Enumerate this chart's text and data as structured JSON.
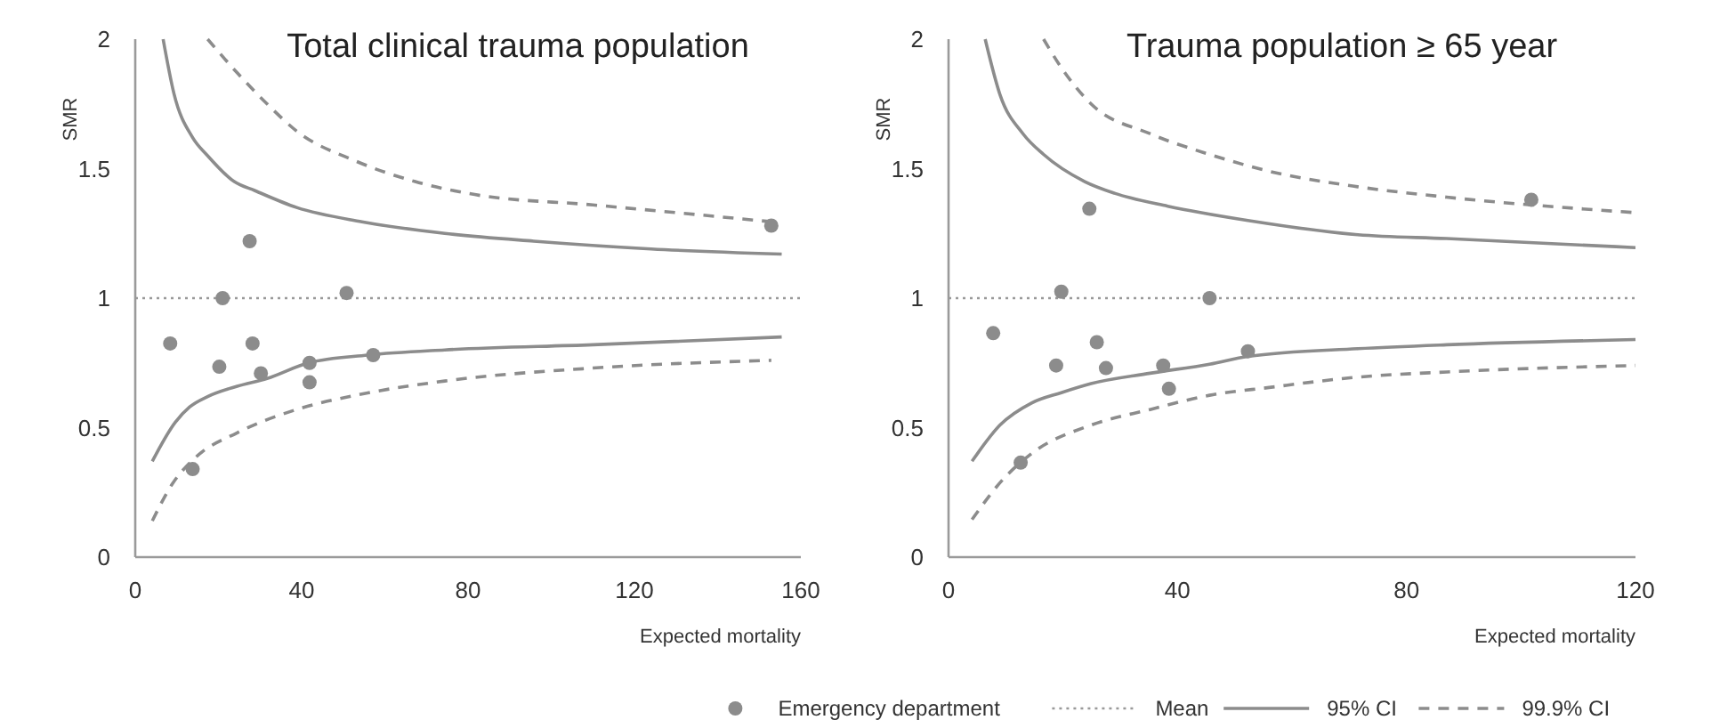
{
  "chart_data": [
    {
      "type": "scatter",
      "title": "Total clinical trauma population",
      "xlabel": "Expected mortality",
      "ylabel": "SMR",
      "xlim": [
        0,
        160
      ],
      "ylim": [
        0,
        2
      ],
      "xticks": [
        0,
        40,
        80,
        120,
        160
      ],
      "yticks": [
        0,
        0.5,
        1,
        1.5,
        2
      ],
      "grid": false,
      "series": [
        {
          "marker": "circle",
          "color": "#8c8c8c",
          "x": [
            8.4,
            21,
            27.5,
            20.2,
            28.2,
            30.2,
            41.9,
            41.9,
            50.8,
            57.2,
            13.8,
            152.9
          ],
          "values": [
            0.825,
            1.0,
            1.22,
            0.735,
            0.825,
            0.71,
            0.75,
            0.675,
            1.02,
            0.78,
            0.34,
            1.28
          ]
        },
        {
          "type": "line",
          "line_style": "dotted",
          "color": "#999999",
          "x": [
            0,
            160
          ],
          "values": [
            1,
            1
          ]
        },
        {
          "type": "line",
          "line_style": "solid",
          "color": "#8c8c8c",
          "x": [
            6.7,
            9.3,
            13.8,
            17.4,
            23.8,
            28.8,
            38.8,
            54.5,
            74.4,
            95.8,
            124,
            155.4
          ],
          "values": [
            2.0,
            1.79,
            1.62,
            1.55,
            1.45,
            1.415,
            1.35,
            1.295,
            1.25,
            1.22,
            1.19,
            1.17
          ]
        },
        {
          "type": "line",
          "line_style": "solid",
          "color": "#8c8c8c",
          "x": [
            4.1,
            9.6,
            13.1,
            17.4,
            24.5,
            31.7,
            41.6,
            55.9,
            74.4,
            110,
            155.4
          ],
          "values": [
            0.37,
            0.52,
            0.58,
            0.62,
            0.66,
            0.69,
            0.75,
            0.78,
            0.8,
            0.82,
            0.85
          ]
        },
        {
          "type": "line",
          "line_style": "dashed",
          "color": "#8c8c8c",
          "x": [
            17.4,
            24.5,
            31.7,
            38.8,
            52.9,
            67.3,
            81.6,
            110,
            152.9
          ],
          "values": [
            2.0,
            1.87,
            1.75,
            1.645,
            1.53,
            1.45,
            1.4,
            1.36,
            1.295
          ]
        },
        {
          "type": "line",
          "line_style": "dashed",
          "color": "#8c8c8c",
          "x": [
            4.1,
            8.8,
            14.5,
            24.5,
            38.8,
            53,
            74.4,
            110,
            152.9
          ],
          "values": [
            0.14,
            0.28,
            0.385,
            0.48,
            0.57,
            0.625,
            0.68,
            0.73,
            0.76
          ]
        }
      ]
    },
    {
      "type": "scatter",
      "title": "Trauma population ≥ 65 year",
      "xlabel": "Expected mortality",
      "ylabel": "SMR",
      "xlim": [
        0,
        120
      ],
      "ylim": [
        0,
        2
      ],
      "xticks": [
        0,
        40,
        80,
        120
      ],
      "yticks": [
        0,
        0.5,
        1,
        1.5,
        2
      ],
      "grid": false,
      "legend": "bottom",
      "series": [
        {
          "name": "Emergency department",
          "marker": "circle",
          "color": "#8c8c8c",
          "x": [
            7.8,
            19.7,
            24.6,
            18.8,
            25.9,
            27.5,
            37.5,
            38.5,
            45.6,
            52.3,
            12.6,
            101.8
          ],
          "values": [
            0.865,
            1.025,
            1.345,
            0.74,
            0.83,
            0.73,
            0.74,
            0.65,
            1.0,
            0.795,
            0.365,
            1.38
          ]
        },
        {
          "name": "Mean",
          "type": "line",
          "line_style": "dotted",
          "color": "#999999",
          "x": [
            0,
            120
          ],
          "values": [
            1,
            1
          ]
        },
        {
          "name": "95% CI",
          "type": "line",
          "line_style": "solid",
          "color": "#8c8c8c",
          "x": [
            6.4,
            9,
            13,
            16.6,
            23.8,
            29,
            38.3,
            52.3,
            71.5,
            87,
            120
          ],
          "values": [
            2.0,
            1.785,
            1.635,
            1.555,
            1.45,
            1.405,
            1.355,
            1.3,
            1.245,
            1.23,
            1.195
          ]
        },
        {
          "type": "line",
          "line_style": "solid",
          "color": "#8c8c8c",
          "x": [
            4.1,
            9,
            14.5,
            19.7,
            24.9,
            35.2,
            45.6,
            52.3,
            71.5,
            87,
            120
          ],
          "values": [
            0.37,
            0.51,
            0.595,
            0.635,
            0.67,
            0.71,
            0.745,
            0.775,
            0.805,
            0.82,
            0.84
          ]
        },
        {
          "name": "99.9% CI",
          "type": "line",
          "line_style": "dashed",
          "color": "#8c8c8c",
          "x": [
            16.6,
            19.7,
            24.9,
            35.2,
            45.6,
            56,
            71.5,
            87,
            120
          ],
          "values": [
            2.0,
            1.89,
            1.75,
            1.635,
            1.555,
            1.49,
            1.43,
            1.39,
            1.33
          ]
        },
        {
          "type": "line",
          "line_style": "dashed",
          "color": "#8c8c8c",
          "x": [
            4.1,
            9.3,
            14.5,
            24.9,
            35.2,
            45.6,
            56,
            71.5,
            87,
            120
          ],
          "values": [
            0.145,
            0.295,
            0.4,
            0.51,
            0.57,
            0.625,
            0.655,
            0.695,
            0.715,
            0.74
          ]
        }
      ]
    }
  ]
}
